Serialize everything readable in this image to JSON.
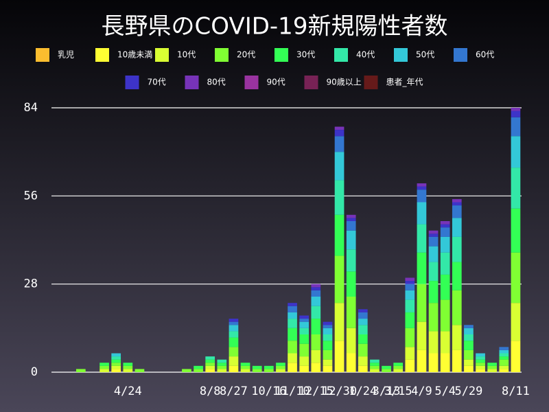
{
  "chart_data": {
    "type": "stacked-bar",
    "title": "長野県のCOVID-19新規陽性者数",
    "categories": [
      null,
      null,
      null,
      null,
      null,
      null,
      "4/24",
      null,
      null,
      null,
      null,
      null,
      null,
      "8/8",
      null,
      "8/27",
      null,
      null,
      "10/16",
      null,
      "11/10",
      null,
      "12/15",
      null,
      "12/30",
      null,
      "1/24",
      null,
      "3/13",
      "3/15",
      null,
      "4/9",
      null,
      "5/4",
      null,
      "5/29",
      null,
      null,
      null,
      "8/11"
    ],
    "ylim": [
      0,
      84
    ],
    "yticks": [
      0,
      28,
      56,
      84
    ],
    "grid": true,
    "series": [
      {
        "name": "乳児",
        "color": "#fbbd2f",
        "values": [
          0,
          0,
          0,
          0,
          0,
          0,
          0,
          0,
          0,
          0,
          0,
          0,
          0,
          0,
          0,
          0,
          0,
          0,
          0,
          0,
          0,
          0,
          0,
          0,
          0,
          0,
          0,
          0,
          0,
          0,
          0,
          0,
          0,
          0,
          0,
          0,
          0,
          0,
          0,
          0
        ]
      },
      {
        "name": "10歳未満",
        "color": "#ffff33",
        "values": [
          0,
          0,
          0,
          0,
          0,
          1,
          0,
          0,
          0,
          0,
          0,
          0,
          0,
          1,
          0,
          2,
          0,
          0,
          0,
          0,
          3,
          2,
          3,
          2,
          10,
          6,
          2,
          0,
          0,
          0,
          4,
          7,
          6,
          6,
          7,
          2,
          1,
          0,
          1,
          10
        ]
      },
      {
        "name": "10代",
        "color": "#d9ff33",
        "values": [
          0,
          0,
          0,
          0,
          1,
          1,
          1,
          0,
          0,
          0,
          0,
          0,
          0,
          1,
          1,
          3,
          1,
          0,
          0,
          1,
          3,
          3,
          4,
          2,
          12,
          8,
          3,
          1,
          0,
          1,
          4,
          9,
          7,
          7,
          8,
          2,
          1,
          1,
          1,
          12
        ]
      },
      {
        "name": "20代",
        "color": "#80ff33",
        "values": [
          0,
          0,
          1,
          0,
          1,
          1,
          1,
          1,
          0,
          0,
          0,
          1,
          1,
          1,
          1,
          3,
          1,
          1,
          1,
          1,
          4,
          4,
          5,
          3,
          15,
          10,
          4,
          1,
          1,
          1,
          6,
          12,
          9,
          10,
          11,
          3,
          1,
          1,
          2,
          16
        ]
      },
      {
        "name": "30代",
        "color": "#33ff55",
        "values": [
          0,
          0,
          0,
          0,
          1,
          1,
          1,
          0,
          0,
          0,
          0,
          0,
          1,
          1,
          1,
          3,
          1,
          1,
          1,
          1,
          4,
          3,
          5,
          3,
          13,
          8,
          3,
          1,
          1,
          1,
          5,
          10,
          7,
          8,
          9,
          3,
          1,
          1,
          1,
          14
        ]
      },
      {
        "name": "40代",
        "color": "#33e8a8",
        "values": [
          0,
          0,
          0,
          0,
          0,
          1,
          0,
          0,
          0,
          0,
          0,
          0,
          0,
          1,
          1,
          2,
          0,
          0,
          0,
          0,
          3,
          2,
          4,
          2,
          11,
          7,
          3,
          1,
          0,
          0,
          4,
          9,
          6,
          7,
          8,
          2,
          1,
          0,
          1,
          13
        ]
      },
      {
        "name": "50代",
        "color": "#33c8d8",
        "values": [
          0,
          0,
          0,
          0,
          0,
          1,
          0,
          0,
          0,
          0,
          0,
          0,
          0,
          0,
          0,
          2,
          0,
          0,
          0,
          0,
          2,
          2,
          3,
          2,
          9,
          6,
          2,
          0,
          0,
          0,
          3,
          7,
          5,
          5,
          6,
          2,
          1,
          0,
          1,
          10
        ]
      },
      {
        "name": "60代",
        "color": "#3377d0",
        "values": [
          0,
          0,
          0,
          0,
          0,
          0,
          0,
          0,
          0,
          0,
          0,
          0,
          0,
          0,
          0,
          1,
          0,
          0,
          0,
          0,
          2,
          1,
          2,
          1,
          5,
          3,
          2,
          0,
          0,
          0,
          2,
          4,
          3,
          3,
          4,
          1,
          0,
          0,
          1,
          6
        ]
      },
      {
        "name": "70代",
        "color": "#3d33c8",
        "values": [
          0,
          0,
          0,
          0,
          0,
          0,
          0,
          0,
          0,
          0,
          0,
          0,
          0,
          0,
          0,
          1,
          0,
          0,
          0,
          0,
          1,
          1,
          1,
          1,
          2,
          1,
          1,
          0,
          0,
          0,
          1,
          1,
          1,
          1,
          1,
          0,
          0,
          0,
          0,
          2
        ]
      },
      {
        "name": "80代",
        "color": "#7733b8",
        "values": [
          0,
          0,
          0,
          0,
          0,
          0,
          0,
          0,
          0,
          0,
          0,
          0,
          0,
          0,
          0,
          0,
          0,
          0,
          0,
          0,
          0,
          0,
          1,
          0,
          1,
          1,
          0,
          0,
          0,
          0,
          1,
          1,
          1,
          1,
          1,
          0,
          0,
          0,
          0,
          1
        ]
      },
      {
        "name": "90代",
        "color": "#9933a0",
        "values": [
          0,
          0,
          0,
          0,
          0,
          0,
          0,
          0,
          0,
          0,
          0,
          0,
          0,
          0,
          0,
          0,
          0,
          0,
          0,
          0,
          0,
          0,
          0,
          0,
          0,
          0,
          0,
          0,
          0,
          0,
          0,
          0,
          0,
          0,
          0,
          0,
          0,
          0,
          0,
          0
        ]
      },
      {
        "name": "90歳以上",
        "color": "#772255",
        "values": [
          0,
          0,
          0,
          0,
          0,
          0,
          0,
          0,
          0,
          0,
          0,
          0,
          0,
          0,
          0,
          0,
          0,
          0,
          0,
          0,
          0,
          0,
          0,
          0,
          0,
          0,
          0,
          0,
          0,
          0,
          0,
          0,
          0,
          0,
          0,
          0,
          0,
          0,
          0,
          0
        ]
      },
      {
        "name": "患者_年代",
        "color": "#661a1a",
        "values": [
          0,
          0,
          0,
          0,
          0,
          0,
          0,
          0,
          0,
          0,
          0,
          0,
          0,
          0,
          0,
          0,
          0,
          0,
          0,
          0,
          0,
          0,
          0,
          0,
          0,
          0,
          0,
          0,
          0,
          0,
          0,
          0,
          0,
          0,
          0,
          0,
          0,
          0,
          0,
          0
        ]
      }
    ]
  }
}
